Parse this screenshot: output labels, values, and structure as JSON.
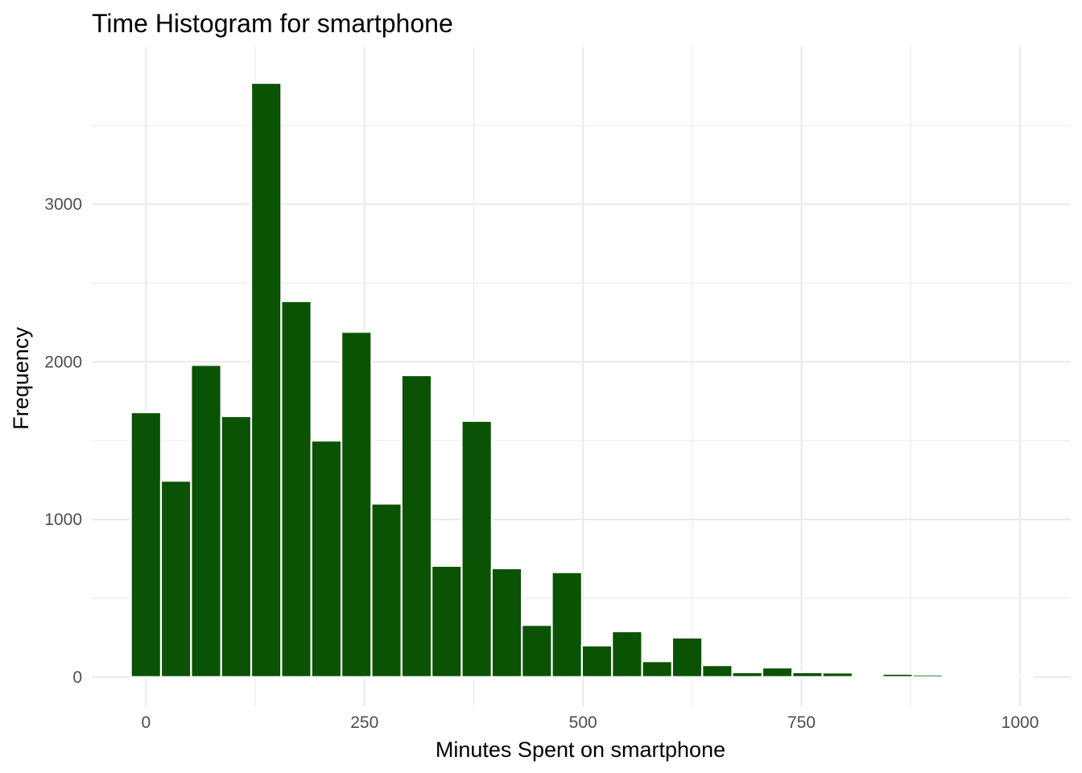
{
  "chart_data": {
    "type": "bar",
    "title": "Time Histogram for smartphone",
    "xlabel": "Minutes Spent on smartphone",
    "ylabel": "Frequency",
    "bar_color": "#0b5304",
    "grid_color": "#ebebeb",
    "bin_width": 34.4,
    "xlim": [
      -62,
      1058
    ],
    "ylim": [
      -185,
      4000
    ],
    "x_ticks": [
      0,
      250,
      500,
      750,
      1000
    ],
    "x_tick_labels": [
      "0",
      "250",
      "500",
      "750",
      "1000"
    ],
    "y_ticks": [
      0,
      1000,
      2000,
      3000
    ],
    "y_tick_labels": [
      "0",
      "1000",
      "2000",
      "3000"
    ],
    "bins": [
      {
        "x": 0,
        "count": 1680
      },
      {
        "x": 34.4,
        "count": 1245
      },
      {
        "x": 68.8,
        "count": 1980
      },
      {
        "x": 103.2,
        "count": 1655
      },
      {
        "x": 137.6,
        "count": 3770
      },
      {
        "x": 172,
        "count": 2385
      },
      {
        "x": 206.4,
        "count": 1500
      },
      {
        "x": 240.8,
        "count": 2190
      },
      {
        "x": 275.2,
        "count": 1100
      },
      {
        "x": 309.6,
        "count": 1915
      },
      {
        "x": 344,
        "count": 705
      },
      {
        "x": 378.4,
        "count": 1625
      },
      {
        "x": 412.8,
        "count": 690
      },
      {
        "x": 447.2,
        "count": 330
      },
      {
        "x": 481.6,
        "count": 665
      },
      {
        "x": 516,
        "count": 200
      },
      {
        "x": 550.4,
        "count": 290
      },
      {
        "x": 584.8,
        "count": 100
      },
      {
        "x": 619.2,
        "count": 250
      },
      {
        "x": 653.6,
        "count": 75
      },
      {
        "x": 688,
        "count": 30
      },
      {
        "x": 722.4,
        "count": 60
      },
      {
        "x": 756.8,
        "count": 30
      },
      {
        "x": 791.2,
        "count": 28
      },
      {
        "x": 825.6,
        "count": 3
      },
      {
        "x": 860,
        "count": 20
      },
      {
        "x": 894.4,
        "count": 15
      },
      {
        "x": 928.8,
        "count": 3
      },
      {
        "x": 963.2,
        "count": 3
      },
      {
        "x": 997.6,
        "count": 5
      }
    ]
  }
}
